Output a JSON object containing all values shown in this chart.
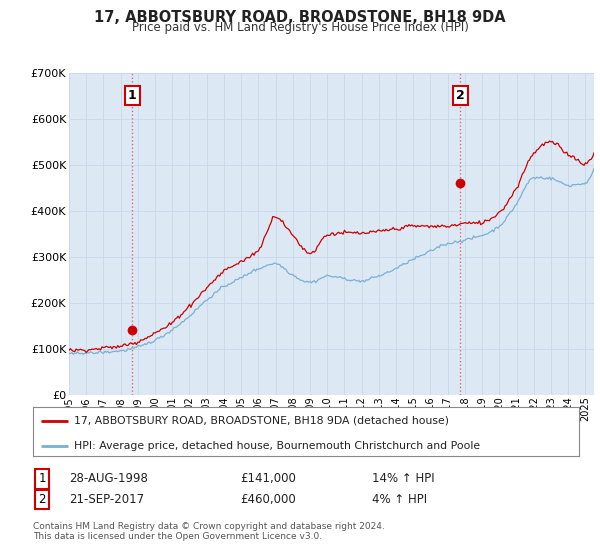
{
  "title": "17, ABBOTSBURY ROAD, BROADSTONE, BH18 9DA",
  "subtitle": "Price paid vs. HM Land Registry's House Price Index (HPI)",
  "ylim": [
    0,
    700000
  ],
  "xlim_start": 1995.0,
  "xlim_end": 2025.5,
  "sale1_year": 1998.67,
  "sale1_price": 141000,
  "sale1_label": "1",
  "sale2_year": 2017.72,
  "sale2_price": 460000,
  "sale2_label": "2",
  "hpi_color": "#7ab0d4",
  "price_color": "#cc0000",
  "dashed_color": "#e06060",
  "plot_bg_color": "#dce9f5",
  "legend_line1": "17, ABBOTSBURY ROAD, BROADSTONE, BH18 9DA (detached house)",
  "legend_line2": "HPI: Average price, detached house, Bournemouth Christchurch and Poole",
  "table_row1": [
    "1",
    "28-AUG-1998",
    "£141,000",
    "14% ↑ HPI"
  ],
  "table_row2": [
    "2",
    "21-SEP-2017",
    "£460,000",
    "4% ↑ HPI"
  ],
  "footer": "Contains HM Land Registry data © Crown copyright and database right 2024.\nThis data is licensed under the Open Government Licence v3.0.",
  "background_color": "#ffffff",
  "grid_color": "#c8d8e8"
}
